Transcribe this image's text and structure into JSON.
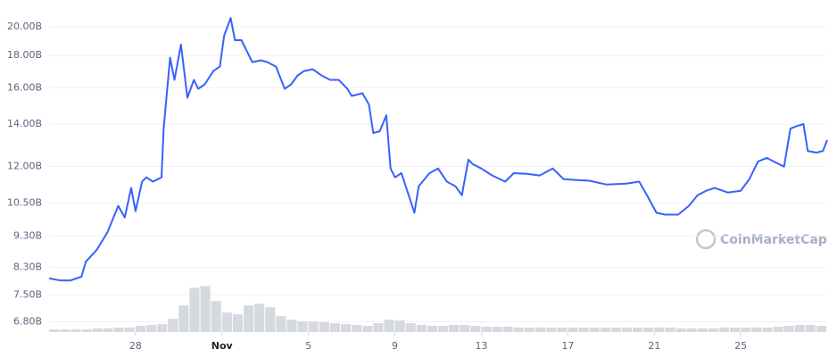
{
  "chart_data": {
    "type": "line",
    "watermark": "CoinMarketCap",
    "log_y": true,
    "grid": true,
    "xlim": [
      0,
      36
    ],
    "xticks": [
      {
        "value": 4,
        "label": "28"
      },
      {
        "value": 8,
        "label": "Nov"
      },
      {
        "value": 12,
        "label": "5"
      },
      {
        "value": 16,
        "label": "9"
      },
      {
        "value": 20,
        "label": "13"
      },
      {
        "value": 24,
        "label": "17"
      },
      {
        "value": 28,
        "label": "21"
      },
      {
        "value": 32,
        "label": "25"
      }
    ],
    "ylim": [
      6.55,
      21
    ],
    "yticks": [
      {
        "value": 6.8,
        "label": "6.80B"
      },
      {
        "value": 7.5,
        "label": "7.50B"
      },
      {
        "value": 8.3,
        "label": "8.30B"
      },
      {
        "value": 9.3,
        "label": "9.30B"
      },
      {
        "value": 10.5,
        "label": "10.50B"
      },
      {
        "value": 12,
        "label": "12.00B"
      },
      {
        "value": 14,
        "label": "14.00B"
      },
      {
        "value": 16,
        "label": "16.00B"
      },
      {
        "value": 18,
        "label": "18.00B"
      },
      {
        "value": 20,
        "label": "20.00B"
      }
    ],
    "y2lim": [
      0,
      360
    ],
    "series": [
      {
        "color": "#3861fb",
        "x": [
          0,
          0.5,
          1,
          1.5,
          1.7,
          2.2,
          2.7,
          3.2,
          3.5,
          3.8,
          4.0,
          4.3,
          4.5,
          4.8,
          5.2,
          5.3,
          5.6,
          5.8,
          6.1,
          6.4,
          6.7,
          6.9,
          7.2,
          7.6,
          7.9,
          8.1,
          8.4,
          8.6,
          8.9,
          9.1,
          9.4,
          9.8,
          10.1,
          10.5,
          10.9,
          11.2,
          11.5,
          11.8,
          12.2,
          12.6,
          13.0,
          13.4,
          13.8,
          14.0,
          14.5,
          14.8,
          15.0,
          15.3,
          15.6,
          15.8,
          16.0,
          16.3,
          16.5,
          16.9,
          17.1,
          17.6,
          18.0,
          18.4,
          18.8,
          19.1,
          19.4,
          19.6,
          20.0,
          20.5,
          21.1,
          21.5,
          22.1,
          22.7,
          23.3,
          23.8,
          24.4,
          25.0,
          25.8,
          26.7,
          27.3,
          27.7,
          28.1,
          28.5,
          29.1,
          29.6,
          30.0,
          30.4,
          30.8,
          31.4,
          32.0,
          32.4,
          32.8,
          33.2,
          33.6,
          34.0,
          34.3,
          34.6,
          34.9,
          35.1,
          35.5,
          35.8,
          36.0
        ],
        "values": [
          7.97,
          7.91,
          7.91,
          8.02,
          8.47,
          8.84,
          9.43,
          10.39,
          9.96,
          11.09,
          10.19,
          11.35,
          11.53,
          11.35,
          11.53,
          13.78,
          17.86,
          16.47,
          18.74,
          15.43,
          16.47,
          15.94,
          16.2,
          17.01,
          17.29,
          19.36,
          20.65,
          19.04,
          19.04,
          18.44,
          17.57,
          17.69,
          17.57,
          17.29,
          15.94,
          16.2,
          16.74,
          17.01,
          17.12,
          16.74,
          16.47,
          16.47,
          15.94,
          15.53,
          15.68,
          15.04,
          13.56,
          13.65,
          14.46,
          11.91,
          11.53,
          11.71,
          11.16,
          10.13,
          11.16,
          11.71,
          11.91,
          11.35,
          11.16,
          10.8,
          12.3,
          12.1,
          11.91,
          11.61,
          11.35,
          11.71,
          11.68,
          11.61,
          11.91,
          11.46,
          11.42,
          11.39,
          11.23,
          11.27,
          11.35,
          10.74,
          10.13,
          10.06,
          10.06,
          10.39,
          10.8,
          10.98,
          11.09,
          10.91,
          10.98,
          11.46,
          12.22,
          12.38,
          12.18,
          11.99,
          13.78,
          13.91,
          14.01,
          12.7,
          12.62,
          12.7,
          13.21
        ]
      },
      {
        "type": "bar",
        "axis": "y2",
        "color": "#d6d9e0",
        "x": [
          0,
          0.5,
          1,
          1.5,
          2,
          2.5,
          3,
          3.5,
          4,
          4.5,
          5,
          5.5,
          6,
          6.5,
          7,
          7.5,
          8,
          8.5,
          9,
          9.5,
          10,
          10.5,
          11,
          11.5,
          12,
          12.5,
          13,
          13.5,
          14,
          14.5,
          15,
          15.5,
          16,
          16.5,
          17,
          17.5,
          18,
          18.5,
          19,
          19.5,
          20,
          20.5,
          21,
          21.5,
          22,
          22.5,
          23,
          23.5,
          24,
          24.5,
          25,
          25.5,
          26,
          26.5,
          27,
          27.5,
          28,
          28.5,
          29,
          29.5,
          30,
          30.5,
          31,
          31.5,
          32,
          32.5,
          33,
          33.5,
          34,
          34.5,
          35,
          35.5
        ],
        "values": [
          3,
          3,
          3,
          3,
          4,
          4,
          5,
          5,
          7,
          8,
          9,
          15,
          30,
          50,
          52,
          35,
          22,
          20,
          30,
          32,
          28,
          18,
          14,
          12,
          12,
          11,
          10,
          9,
          8,
          7,
          10,
          14,
          13,
          10,
          8,
          7,
          7,
          8,
          8,
          7,
          6,
          6,
          6,
          5,
          5,
          5,
          5,
          5,
          5,
          5,
          5,
          5,
          5,
          5,
          5,
          5,
          5,
          5,
          4,
          4,
          4,
          4,
          5,
          5,
          5,
          5,
          5,
          6,
          7,
          8,
          8,
          7
        ]
      }
    ]
  }
}
